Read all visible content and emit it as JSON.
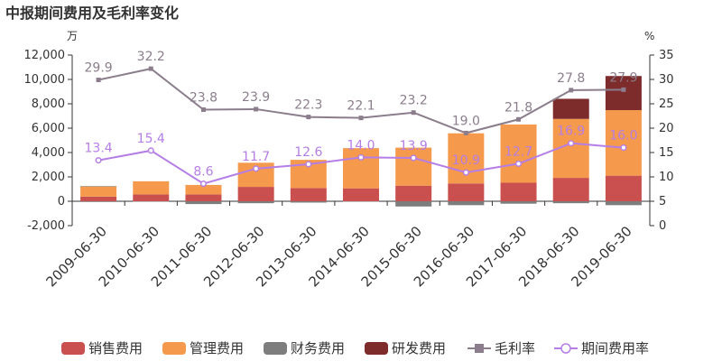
{
  "chart_data": {
    "type": "bar",
    "title": "中报期间费用及毛利率变化",
    "left_unit": "万",
    "right_unit": "%",
    "categories": [
      "2009-06-30",
      "2010-06-30",
      "2011-06-30",
      "2012-06-30",
      "2013-06-30",
      "2014-06-30",
      "2015-06-30",
      "2016-06-30",
      "2017-06-30",
      "2018-06-30",
      "2019-06-30"
    ],
    "left_axis": {
      "ylim": [
        -2000,
        12000
      ],
      "ticks": [
        "-2,000",
        "0",
        "2,000",
        "4,000",
        "6,000",
        "8,000",
        "10,000",
        "12,000"
      ]
    },
    "right_axis": {
      "ylim": [
        0,
        35
      ],
      "ticks": [
        "0",
        "5",
        "10",
        "15",
        "20",
        "25",
        "30",
        "35"
      ]
    },
    "bar_series": [
      {
        "name": "销售费用",
        "color": "#c9504f",
        "values": [
          380,
          560,
          560,
          1180,
          1080,
          1060,
          1280,
          1460,
          1520,
          1920,
          2100
        ]
      },
      {
        "name": "管理费用",
        "color": "#f59a4c",
        "values": [
          830,
          1080,
          780,
          1980,
          2320,
          3300,
          3120,
          4120,
          4780,
          4840,
          5380
        ]
      },
      {
        "name": "财务费用",
        "color": "#7d7d7d",
        "values": [
          40,
          -20,
          -230,
          -160,
          -110,
          -30,
          -430,
          -320,
          -200,
          -160,
          -320
        ]
      },
      {
        "name": "研发费用",
        "color": "#7d2b2b",
        "values": [
          0,
          0,
          0,
          0,
          0,
          0,
          0,
          0,
          0,
          1650,
          2800
        ]
      }
    ],
    "line_series": [
      {
        "name": "毛利率",
        "color": "#8b7d8b",
        "values": [
          29.9,
          32.2,
          23.8,
          23.9,
          22.3,
          22.1,
          23.2,
          19.0,
          21.8,
          27.8,
          27.9
        ],
        "labels": [
          "29.9",
          "32.2",
          "23.8",
          "23.9",
          "22.3",
          "22.1",
          "23.2",
          "19.0",
          "21.8",
          "27.8",
          "27.9"
        ]
      },
      {
        "name": "期间费用率",
        "color": "#b57ee6",
        "values": [
          13.4,
          15.4,
          8.6,
          11.7,
          12.6,
          14.0,
          13.9,
          10.9,
          12.7,
          16.9,
          16.0
        ],
        "labels": [
          "13.4",
          "15.4",
          "8.6",
          "11.7",
          "12.6",
          "14.0",
          "13.9",
          "10.9",
          "12.7",
          "16.9",
          "16.0"
        ]
      }
    ],
    "legend": [
      "销售费用",
      "管理费用",
      "财务费用",
      "研发费用",
      "毛利率",
      "期间费用率"
    ],
    "legend_position": "bottom",
    "grid": false
  }
}
